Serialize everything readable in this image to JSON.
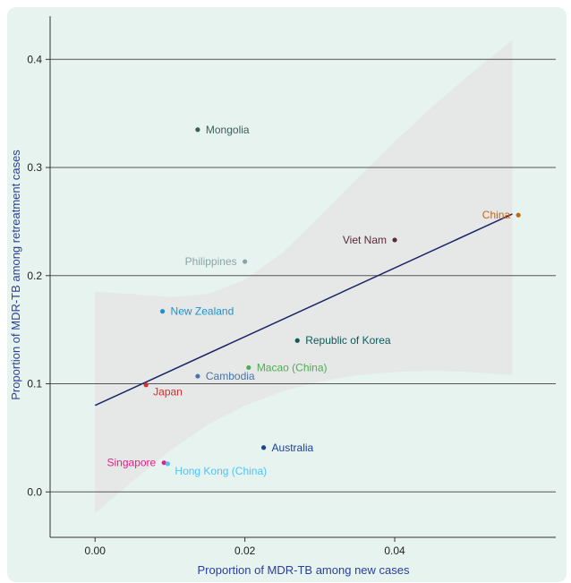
{
  "chart_data": {
    "type": "scatter",
    "title": "",
    "xlabel": "Proportion of MDR-TB among new cases",
    "ylabel": "Proportion of MDR-TB among retreatment cases",
    "xlim": [
      -0.006,
      0.0615
    ],
    "ylim": [
      -0.042,
      0.44
    ],
    "x_ticks": [
      0.0,
      0.02,
      0.04
    ],
    "x_tick_labels": [
      "0.00",
      "0.02",
      "0.04"
    ],
    "y_ticks": [
      0.0,
      0.1,
      0.2,
      0.3,
      0.4
    ],
    "y_tick_labels": [
      "0.0",
      "0.1",
      "0.2",
      "0.3",
      "0.4"
    ],
    "grid": "horizontal",
    "points": [
      {
        "label": "Mongolia",
        "x": 0.0137,
        "y": 0.335,
        "color": "#3d5e58",
        "label_side": "right"
      },
      {
        "label": "China",
        "x": 0.0565,
        "y": 0.256,
        "color": "#c0661a",
        "label_side": "left"
      },
      {
        "label": "Viet Nam",
        "x": 0.04,
        "y": 0.233,
        "color": "#5b2a3a",
        "label_side": "left"
      },
      {
        "label": "Philippines",
        "x": 0.02,
        "y": 0.213,
        "color": "#8aa6a3",
        "label_side": "left"
      },
      {
        "label": "New Zealand",
        "x": 0.009,
        "y": 0.167,
        "color": "#1c92cf",
        "label_side": "right"
      },
      {
        "label": "Republic of Korea",
        "x": 0.027,
        "y": 0.14,
        "color": "#0f5a5a",
        "label_side": "right"
      },
      {
        "label": "Macao (China)",
        "x": 0.0205,
        "y": 0.115,
        "color": "#4caf50",
        "label_side": "right"
      },
      {
        "label": "Cambodia",
        "x": 0.0137,
        "y": 0.107,
        "color": "#4a73a8",
        "label_side": "right"
      },
      {
        "label": "Japan",
        "x": 0.0068,
        "y": 0.099,
        "color": "#d32f2f",
        "label_side": "right-below"
      },
      {
        "label": "Australia",
        "x": 0.0225,
        "y": 0.041,
        "color": "#1f3f8f",
        "label_side": "right"
      },
      {
        "label": "Singapore",
        "x": 0.0092,
        "y": 0.027,
        "color": "#e0218a",
        "label_side": "left"
      },
      {
        "label": "Hong Kong (China)",
        "x": 0.0097,
        "y": 0.026,
        "color": "#4fc3f7",
        "label_side": "right-below"
      }
    ],
    "trend_line": {
      "x": [
        0.0,
        0.0557
      ],
      "y": [
        0.08,
        0.257
      ],
      "color": "#1a2466"
    },
    "confidence_band": {
      "color": "#e6e6e6",
      "x": [
        0.0,
        0.005,
        0.01,
        0.015,
        0.02,
        0.025,
        0.03,
        0.035,
        0.04,
        0.045,
        0.05,
        0.0557
      ],
      "upper": [
        0.185,
        0.183,
        0.18,
        0.183,
        0.196,
        0.221,
        0.255,
        0.29,
        0.324,
        0.356,
        0.386,
        0.418
      ],
      "lower": [
        -0.02,
        0.01,
        0.038,
        0.062,
        0.08,
        0.093,
        0.102,
        0.108,
        0.111,
        0.112,
        0.111,
        0.108
      ]
    },
    "colors": {
      "background": "#e6f3ef",
      "plot_background": "#e6f3ef",
      "grid": "#555555",
      "axis_title": "#2a3f9b"
    }
  }
}
